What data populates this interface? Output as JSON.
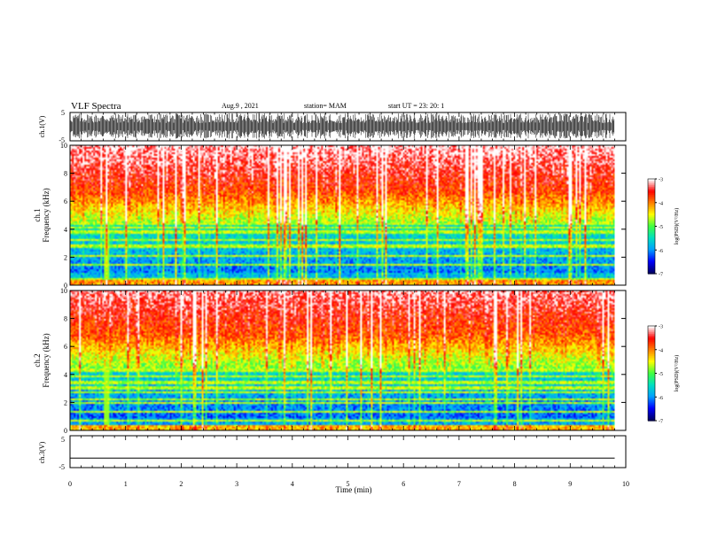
{
  "header": {
    "title": "VLF Spectra",
    "date": "Aug.9 , 2021",
    "station": "station= MAM",
    "start": "start UT = 23: 20: 1"
  },
  "panels": {
    "ch1_waveform": {
      "ylabel": "ch.1(V)",
      "ticks": [
        "5",
        "-5"
      ]
    },
    "ch1_spectrogram": {
      "ylabel_channel": "ch.1",
      "ylabel": "Frequency (kHz)",
      "ticks": [
        "10",
        "8",
        "6",
        "4",
        "2",
        "0"
      ]
    },
    "ch2_spectrogram": {
      "ylabel_channel": "ch.2",
      "ylabel": "Frequency (kHz)",
      "ticks": [
        "10",
        "8",
        "6",
        "4",
        "2",
        "0"
      ]
    },
    "ch3_waveform": {
      "ylabel": "ch.3(V)",
      "ticks": [
        "5",
        "-5"
      ]
    }
  },
  "colorbar": {
    "label": "log(PSD)(V²/Hz)",
    "ticks": [
      "-3",
      "-4",
      "-5",
      "-6",
      "-7"
    ],
    "colors": [
      "#000066",
      "#0000ff",
      "#00a0ff",
      "#00e0c0",
      "#40ff40",
      "#ffff00",
      "#ff8000",
      "#ff0000",
      "#ffffff"
    ]
  },
  "xaxis": {
    "label": "Time (min)",
    "ticks": [
      "0",
      "1",
      "2",
      "3",
      "4",
      "5",
      "6",
      "7",
      "8",
      "9",
      "10"
    ]
  },
  "chart_data": {
    "type": "heatmap",
    "title": "VLF Spectra",
    "xlabel": "Time (min)",
    "xlim": [
      0,
      10
    ],
    "data_end_min": 9.8,
    "panels": [
      {
        "name": "ch.1",
        "ylabel": "Frequency (kHz)",
        "ylim": [
          0,
          10
        ],
        "zlabel": "log(PSD)(V²/Hz)",
        "zlim": [
          -7,
          -3
        ]
      },
      {
        "name": "ch.2",
        "ylabel": "Frequency (kHz)",
        "ylim": [
          0,
          10
        ],
        "zlabel": "log(PSD)(V²/Hz)",
        "zlim": [
          -7,
          -3
        ]
      }
    ],
    "waveforms": [
      {
        "name": "ch.1(V)",
        "ylim": [
          -5,
          5
        ]
      },
      {
        "name": "ch.3(V)",
        "ylim": [
          -5,
          5
        ],
        "level": -2
      }
    ]
  }
}
